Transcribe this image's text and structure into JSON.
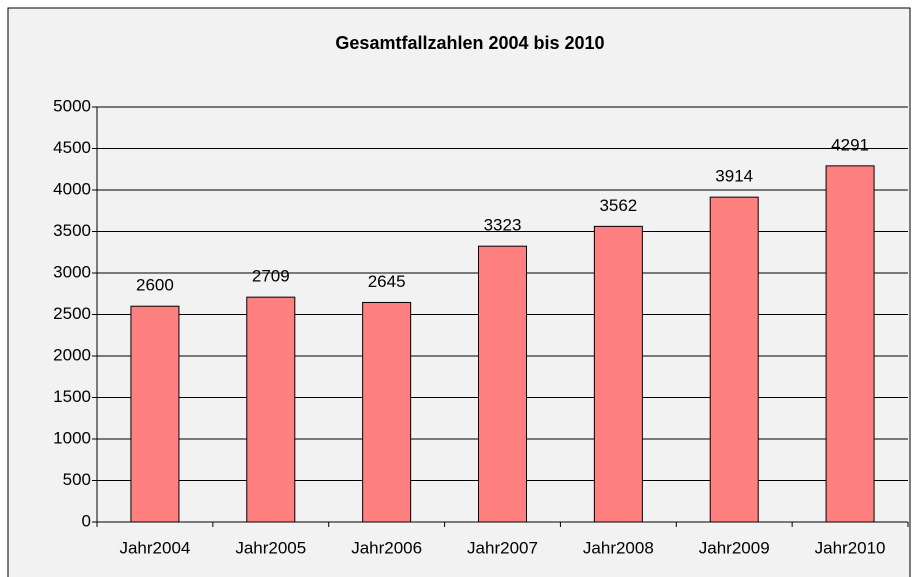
{
  "chart_data": {
    "type": "bar",
    "title": "Gesamtfallzahlen 2004 bis 2010",
    "categories": [
      "Jahr2004",
      "Jahr2005",
      "Jahr2006",
      "Jahr2007",
      "Jahr2008",
      "Jahr2009",
      "Jahr2010"
    ],
    "values": [
      2600,
      2709,
      2645,
      3323,
      3562,
      3914,
      4291
    ],
    "color": "#ff8080",
    "ylim": [
      0,
      5000
    ],
    "yticks": [
      0,
      500,
      1000,
      1500,
      2000,
      2500,
      3000,
      3500,
      4000,
      4500,
      5000
    ],
    "grid": true
  }
}
